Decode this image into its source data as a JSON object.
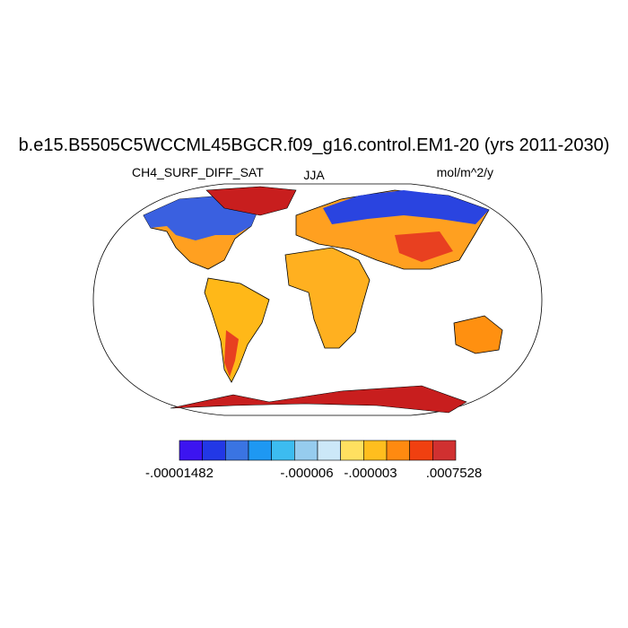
{
  "title": "b.e15.B5505C5WCCML45BGCR.f09_g16.control.EM1-20 (yrs 2011-2030)",
  "left_string": "CH4_SURF_DIFF_SAT",
  "center_string": "JJA",
  "right_string": "mol/m^2/y",
  "colorbar": {
    "colors": [
      "#3c14f0",
      "#2238e6",
      "#3a74e2",
      "#1e98f2",
      "#3cbcf0",
      "#96ccee",
      "#cce8f8",
      "#ffe060",
      "#ffbe1e",
      "#ff8a10",
      "#f04010",
      "#d03030"
    ],
    "labels": [
      "-.00001482",
      "-.000006",
      "-.000003",
      ".0007528"
    ]
  }
}
